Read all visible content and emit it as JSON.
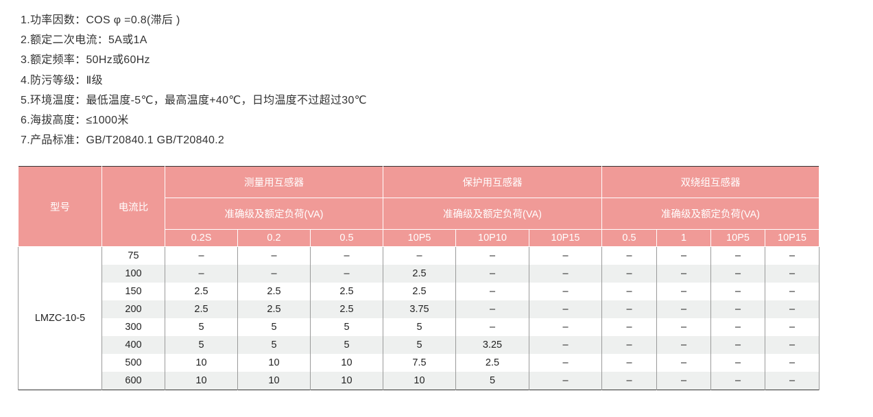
{
  "specs": [
    "1.功率因数：COS φ =0.8(滞后 )",
    "2.额定二次电流：5A或1A",
    "3.额定频率：50Hz或60Hz",
    "4.防污等级：Ⅱ级",
    "5.环境温度：最低温度-5℃，最高温度+40℃，日均温度不过超过30℃",
    "6.海拔高度：≤1000米",
    "7.产品标准：GB/T20840.1   GB/T20840.2"
  ],
  "table": {
    "colors": {
      "header_bg": "#f09a97",
      "zebra": "#eef0ef"
    },
    "model_header": "型号",
    "ratio_header": "电流比",
    "groups": [
      {
        "title": "测量用互感器",
        "sub": "准确级及额定负荷(VA)",
        "cols": [
          "0.2S",
          "0.2",
          "0.5"
        ]
      },
      {
        "title": "保护用互感器",
        "sub": "准确级及额定负荷(VA)",
        "cols": [
          "10P5",
          "10P10",
          "10P15"
        ]
      },
      {
        "title": "双绕组互感器",
        "sub": "准确级及额定负荷(VA)",
        "cols": [
          "0.5",
          "1",
          "10P5",
          "10P15"
        ]
      }
    ],
    "model": "LMZC-10-5",
    "rows": [
      {
        "ratio": "75",
        "values": [
          "–",
          "–",
          "–",
          "–",
          "–",
          "–",
          "–",
          "–",
          "–",
          "–"
        ]
      },
      {
        "ratio": "100",
        "values": [
          "–",
          "–",
          "–",
          "2.5",
          "–",
          "–",
          "–",
          "–",
          "–",
          "–"
        ]
      },
      {
        "ratio": "150",
        "values": [
          "2.5",
          "2.5",
          "2.5",
          "2.5",
          "–",
          "–",
          "–",
          "–",
          "–",
          "–"
        ]
      },
      {
        "ratio": "200",
        "values": [
          "2.5",
          "2.5",
          "2.5",
          "3.75",
          "–",
          "–",
          "–",
          "–",
          "–",
          "–"
        ]
      },
      {
        "ratio": "300",
        "values": [
          "5",
          "5",
          "5",
          "5",
          "–",
          "–",
          "–",
          "–",
          "–",
          "–"
        ]
      },
      {
        "ratio": "400",
        "values": [
          "5",
          "5",
          "5",
          "5",
          "3.25",
          "–",
          "–",
          "–",
          "–",
          "–"
        ]
      },
      {
        "ratio": "500",
        "values": [
          "10",
          "10",
          "10",
          "7.5",
          "2.5",
          "–",
          "–",
          "–",
          "–",
          "–"
        ]
      },
      {
        "ratio": "600",
        "values": [
          "10",
          "10",
          "10",
          "10",
          "5",
          "–",
          "–",
          "–",
          "–",
          "–"
        ]
      }
    ]
  }
}
